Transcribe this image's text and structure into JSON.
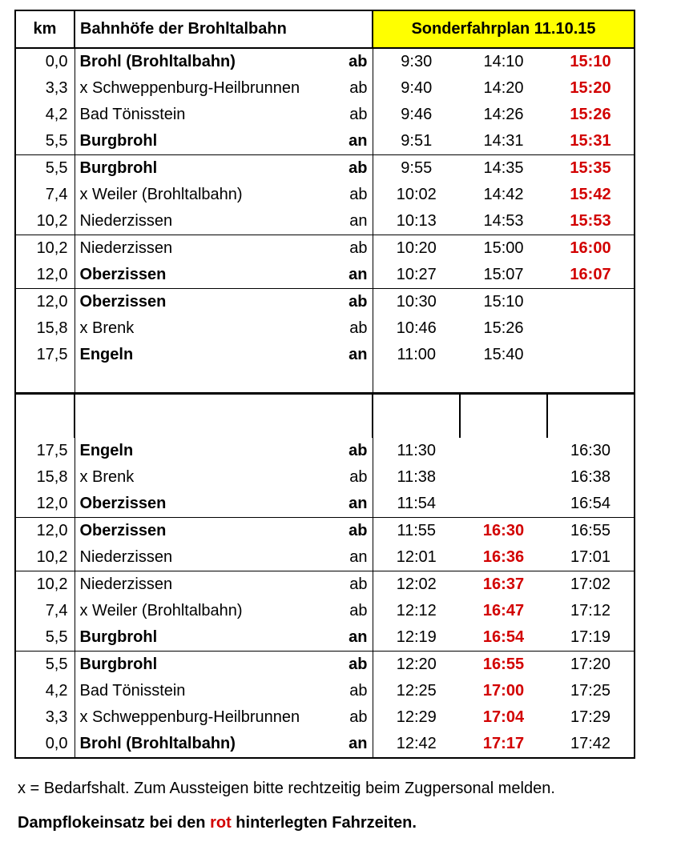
{
  "header": {
    "km": "km",
    "station": "Bahnhöfe der Brohltalbahn",
    "special": "Sonderfahrplan 11.10.15"
  },
  "rows": [
    {
      "km": "0,0",
      "station": "Brohl (Brohltalbahn)",
      "dep": "ab",
      "bold": true,
      "t1": "9:30",
      "t2": "14:10",
      "t3": "15:10",
      "t3red": true,
      "sep": false
    },
    {
      "km": "3,3",
      "station": "x Schweppenburg-Heilbrunnen",
      "dep": "ab",
      "bold": false,
      "t1": "9:40",
      "t2": "14:20",
      "t3": "15:20",
      "t3red": true,
      "sep": false
    },
    {
      "km": "4,2",
      "station": "Bad Tönisstein",
      "dep": "ab",
      "bold": false,
      "t1": "9:46",
      "t2": "14:26",
      "t3": "15:26",
      "t3red": true,
      "sep": false
    },
    {
      "km": "5,5",
      "station": "Burgbrohl",
      "dep": "an",
      "bold": true,
      "t1": "9:51",
      "t2": "14:31",
      "t3": "15:31",
      "t3red": true,
      "sep": false
    },
    {
      "km": "5,5",
      "station": "Burgbrohl",
      "dep": "ab",
      "bold": true,
      "t1": "9:55",
      "t2": "14:35",
      "t3": "15:35",
      "t3red": true,
      "sep": true
    },
    {
      "km": "7,4",
      "station": "x Weiler (Brohltalbahn)",
      "dep": "ab",
      "bold": false,
      "t1": "10:02",
      "t2": "14:42",
      "t3": "15:42",
      "t3red": true,
      "sep": false
    },
    {
      "km": "10,2",
      "station": "Niederzissen",
      "dep": "an",
      "bold": false,
      "t1": "10:13",
      "t2": "14:53",
      "t3": "15:53",
      "t3red": true,
      "sep": false
    },
    {
      "km": "10,2",
      "station": "Niederzissen",
      "dep": "ab",
      "bold": false,
      "t1": "10:20",
      "t2": "15:00",
      "t3": "16:00",
      "t3red": true,
      "sep": true
    },
    {
      "km": "12,0",
      "station": "Oberzissen",
      "dep": "an",
      "bold": true,
      "t1": "10:27",
      "t2": "15:07",
      "t3": "16:07",
      "t3red": true,
      "sep": false
    },
    {
      "km": "12,0",
      "station": "Oberzissen",
      "dep": "ab",
      "bold": true,
      "t1": "10:30",
      "t2": "15:10",
      "t3": "",
      "t3red": false,
      "sep": true
    },
    {
      "km": "15,8",
      "station": "x Brenk",
      "dep": "ab",
      "bold": false,
      "t1": "10:46",
      "t2": "15:26",
      "t3": "",
      "t3red": false,
      "sep": false
    },
    {
      "km": "17,5",
      "station": "Engeln",
      "dep": "an",
      "bold": true,
      "t1": "11:00",
      "t2": "15:40",
      "t3": "",
      "t3red": false,
      "sep": false
    }
  ],
  "rows2": [
    {
      "km": "17,5",
      "station": "Engeln",
      "dep": "ab",
      "bold": true,
      "t1": "11:30",
      "t2": "",
      "t3": "16:30",
      "t2red": false,
      "sep": false
    },
    {
      "km": "15,8",
      "station": "x Brenk",
      "dep": "ab",
      "bold": false,
      "t1": "11:38",
      "t2": "",
      "t3": "16:38",
      "t2red": false,
      "sep": false
    },
    {
      "km": "12,0",
      "station": "Oberzissen",
      "dep": "an",
      "bold": true,
      "t1": "11:54",
      "t2": "",
      "t3": "16:54",
      "t2red": false,
      "sep": false
    },
    {
      "km": "12,0",
      "station": "Oberzissen",
      "dep": "ab",
      "bold": true,
      "t1": "11:55",
      "t2": "16:30",
      "t3": "16:55",
      "t2red": true,
      "sep": true
    },
    {
      "km": "10,2",
      "station": "Niederzissen",
      "dep": "an",
      "bold": false,
      "t1": "12:01",
      "t2": "16:36",
      "t3": "17:01",
      "t2red": true,
      "sep": false
    },
    {
      "km": "10,2",
      "station": "Niederzissen",
      "dep": "ab",
      "bold": false,
      "t1": "12:02",
      "t2": "16:37",
      "t3": "17:02",
      "t2red": true,
      "sep": true
    },
    {
      "km": "7,4",
      "station": "x Weiler (Brohltalbahn)",
      "dep": "ab",
      "bold": false,
      "t1": "12:12",
      "t2": "16:47",
      "t3": "17:12",
      "t2red": true,
      "sep": false
    },
    {
      "km": "5,5",
      "station": "Burgbrohl",
      "dep": "an",
      "bold": true,
      "t1": "12:19",
      "t2": "16:54",
      "t3": "17:19",
      "t2red": true,
      "sep": false
    },
    {
      "km": "5,5",
      "station": "Burgbrohl",
      "dep": "ab",
      "bold": true,
      "t1": "12:20",
      "t2": "16:55",
      "t3": "17:20",
      "t2red": true,
      "sep": true
    },
    {
      "km": "4,2",
      "station": "Bad Tönisstein",
      "dep": "ab",
      "bold": false,
      "t1": "12:25",
      "t2": "17:00",
      "t3": "17:25",
      "t2red": true,
      "sep": false
    },
    {
      "km": "3,3",
      "station": "x Schweppenburg-Heilbrunnen",
      "dep": "ab",
      "bold": false,
      "t1": "12:29",
      "t2": "17:04",
      "t3": "17:29",
      "t2red": true,
      "sep": false
    },
    {
      "km": "0,0",
      "station": "Brohl (Brohltalbahn)",
      "dep": "an",
      "bold": true,
      "t1": "12:42",
      "t2": "17:17",
      "t3": "17:42",
      "t2red": true,
      "sep": false
    }
  ],
  "footnote1": "x = Bedarfshalt. Zum Aussteigen bitte rechtzeitig beim Zugpersonal melden.",
  "footnote2_a": "Dampflokeinsatz bei den ",
  "footnote2_red": "rot",
  "footnote2_b": " hinterlegten Fahrzeiten."
}
